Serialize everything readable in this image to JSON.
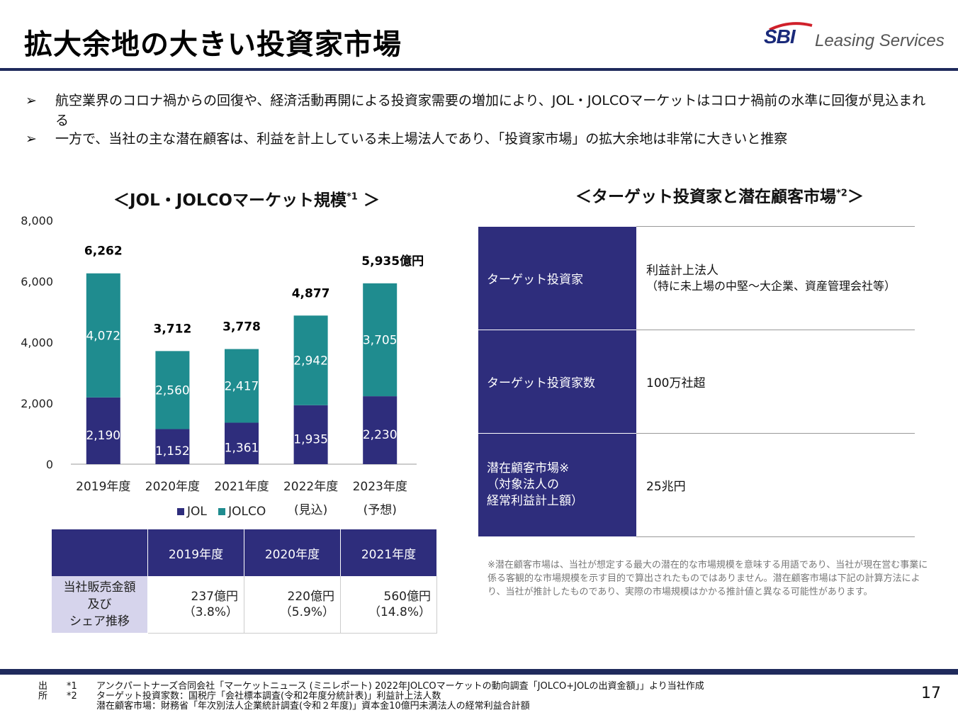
{
  "header": {
    "title": "拡大余地の大きい投資家市場",
    "logo_sbi": "SBI",
    "logo_text": "Leasing Services"
  },
  "bullets": [
    {
      "marker": "➢",
      "text": "航空業界のコロナ禍からの回復や、経済活動再開による投資家需要の増加により、JOL・JOLCOマーケットはコロナ禍前の水準に回復が見込まれる"
    },
    {
      "marker": "➢",
      "text": "一方で、当社の主な潜在顧客は、利益を計上している未上場法人であり、「投資家市場」の拡大余地は非常に大きいと推察"
    }
  ],
  "chart_section": {
    "title_main": "＜JOL・JOLCOマーケット規模",
    "title_sup": "*1",
    "title_end": " ＞"
  },
  "chart_data": {
    "type": "bar",
    "stacked": true,
    "categories": [
      "2019年度",
      "2020年度",
      "2021年度",
      "2022年度",
      "2023年度"
    ],
    "category_sublabels": [
      "",
      "",
      "",
      "(見込)",
      "(予想)"
    ],
    "series": [
      {
        "name": "JOL",
        "values": [
          2190,
          1152,
          1361,
          1935,
          2230
        ],
        "value_labels": [
          "2,190",
          "1,152",
          "1,361",
          "1,935",
          "2,230"
        ],
        "color": "#2e2d7c"
      },
      {
        "name": "JOLCO",
        "values": [
          4072,
          2560,
          2417,
          2942,
          3705
        ],
        "value_labels": [
          "4,072",
          "2,560",
          "2,417",
          "2,942",
          "3,705"
        ],
        "color": "#1f8c8f"
      }
    ],
    "totals": [
      "6,262",
      "3,712",
      "3,778",
      "4,877",
      "5,935億円"
    ],
    "ylim": [
      0,
      8000
    ],
    "yticks": [
      0,
      2000,
      4000,
      6000,
      8000
    ],
    "ytick_labels": [
      "0",
      "2,000",
      "4,000",
      "6,000",
      "8,000"
    ],
    "grid": false,
    "legend_position": "bottom"
  },
  "share_table": {
    "headers": [
      "",
      "2019年度",
      "2020年度",
      "2021年度"
    ],
    "row_label_lines": [
      "当社販売金額",
      "及び",
      "シェア推移"
    ],
    "values": [
      {
        "amount": "237億円",
        "share": "（3.8%）"
      },
      {
        "amount": "220億円",
        "share": "（5.9%）"
      },
      {
        "amount": "560億円",
        "share": "（14.8%）"
      }
    ]
  },
  "target_section": {
    "title_main": "＜ターゲット投資家と潜在顧客市場",
    "title_sup": "*2",
    "title_end": "＞",
    "rows": [
      {
        "label": "ターゲット投資家",
        "value_line1": "利益計上法人",
        "value_line2": "（特に未上場の中堅～大企業、資産管理会社等）"
      },
      {
        "label": "ターゲット投資家数",
        "value_line1": "100万社超",
        "value_line2": ""
      },
      {
        "label_line1": "潜在顧客市場※",
        "label_line2": "（対象法人の",
        "label_line3": "経常利益計上額）",
        "value_line1": "25兆円",
        "value_line2": ""
      }
    ],
    "note": "※潜在顧客市場は、当社が想定する最大の潜在的な市場規模を意味する用語であり、当社が現在営む事業に係る客観的な市場規模を示す目的で算出されたものではありません。潜在顧客市場は下記の計算方法により、当社が推計したものであり、実際の市場規模はかかる推計値と異なる可能性があります。"
  },
  "footer": {
    "source_label": "出所",
    "lines": [
      {
        "mark": "*1",
        "text": "アンクパートナーズ合同会社「マーケットニュース (ミニレポート) 2022年JOLCOマーケットの動向調査「JOLCO+JOLの出資金額」」より当社作成"
      },
      {
        "mark": "*2",
        "text": "ターゲット投資家数：国税庁「会社標本調査(令和2年度分統計表)」利益計上法人数"
      },
      {
        "mark": "",
        "text": "潜在顧客市場：財務省「年次別法人企業統計調査(令和２年度)」資本金10億円未満法人の経常利益合計額"
      }
    ],
    "page_number": "17"
  }
}
